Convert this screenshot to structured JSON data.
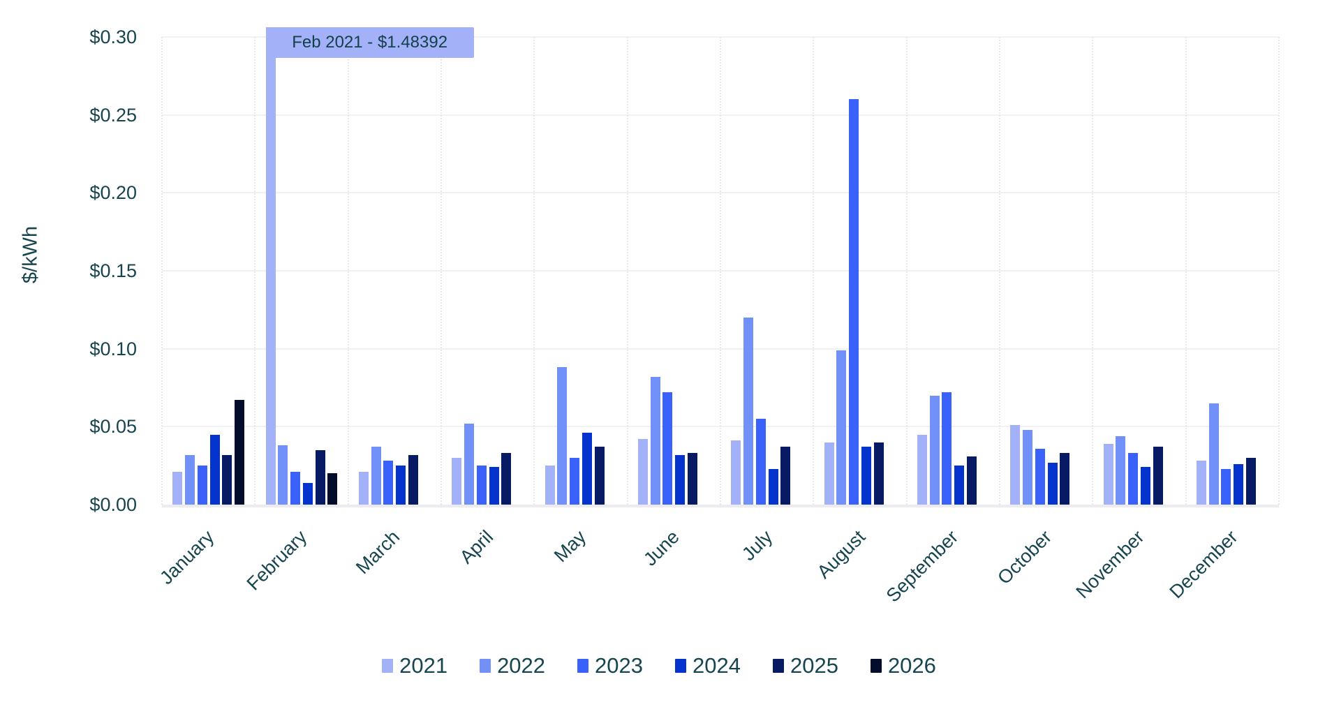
{
  "chart_data": {
    "type": "bar",
    "title": "",
    "xlabel": "",
    "ylabel": "$/kWh",
    "ylim": [
      0,
      0.3
    ],
    "y_tick_labels": [
      "$0.00",
      "$0.05",
      "$0.10",
      "$0.15",
      "$0.20",
      "$0.25",
      "$0.30"
    ],
    "grid": true,
    "legend_position": "bottom",
    "categories": [
      "January",
      "February",
      "March",
      "April",
      "May",
      "June",
      "July",
      "August",
      "September",
      "October",
      "November",
      "December"
    ],
    "series": [
      {
        "name": "2021",
        "color": "#a3b2f8",
        "values": [
          0.021,
          1.48392,
          0.021,
          0.03,
          0.025,
          0.042,
          0.041,
          0.04,
          0.045,
          0.051,
          0.039,
          0.028
        ]
      },
      {
        "name": "2022",
        "color": "#7191f8",
        "values": [
          0.032,
          0.038,
          0.037,
          0.052,
          0.088,
          0.082,
          0.12,
          0.099,
          0.07,
          0.048,
          0.044,
          0.065
        ]
      },
      {
        "name": "2023",
        "color": "#3a62fa",
        "values": [
          0.025,
          0.021,
          0.028,
          0.025,
          0.03,
          0.072,
          0.055,
          0.26,
          0.072,
          0.036,
          0.033,
          0.023
        ]
      },
      {
        "name": "2024",
        "color": "#0533cd",
        "values": [
          0.045,
          0.014,
          0.025,
          0.024,
          0.046,
          0.032,
          0.023,
          0.037,
          0.025,
          0.027,
          0.024,
          0.026
        ]
      },
      {
        "name": "2025",
        "color": "#081a63",
        "values": [
          0.032,
          0.035,
          0.032,
          0.033,
          0.037,
          0.033,
          0.037,
          0.04,
          0.031,
          0.033,
          0.037,
          0.03
        ]
      },
      {
        "name": "2026",
        "color": "#030c2a",
        "values": [
          0.067,
          0.02,
          null,
          null,
          null,
          null,
          null,
          null,
          null,
          null,
          null,
          null
        ]
      }
    ],
    "annotation": {
      "text": "Feb 2021 - $1.48392",
      "target_series": "2021",
      "target_category": "February",
      "value": 1.48392
    }
  }
}
